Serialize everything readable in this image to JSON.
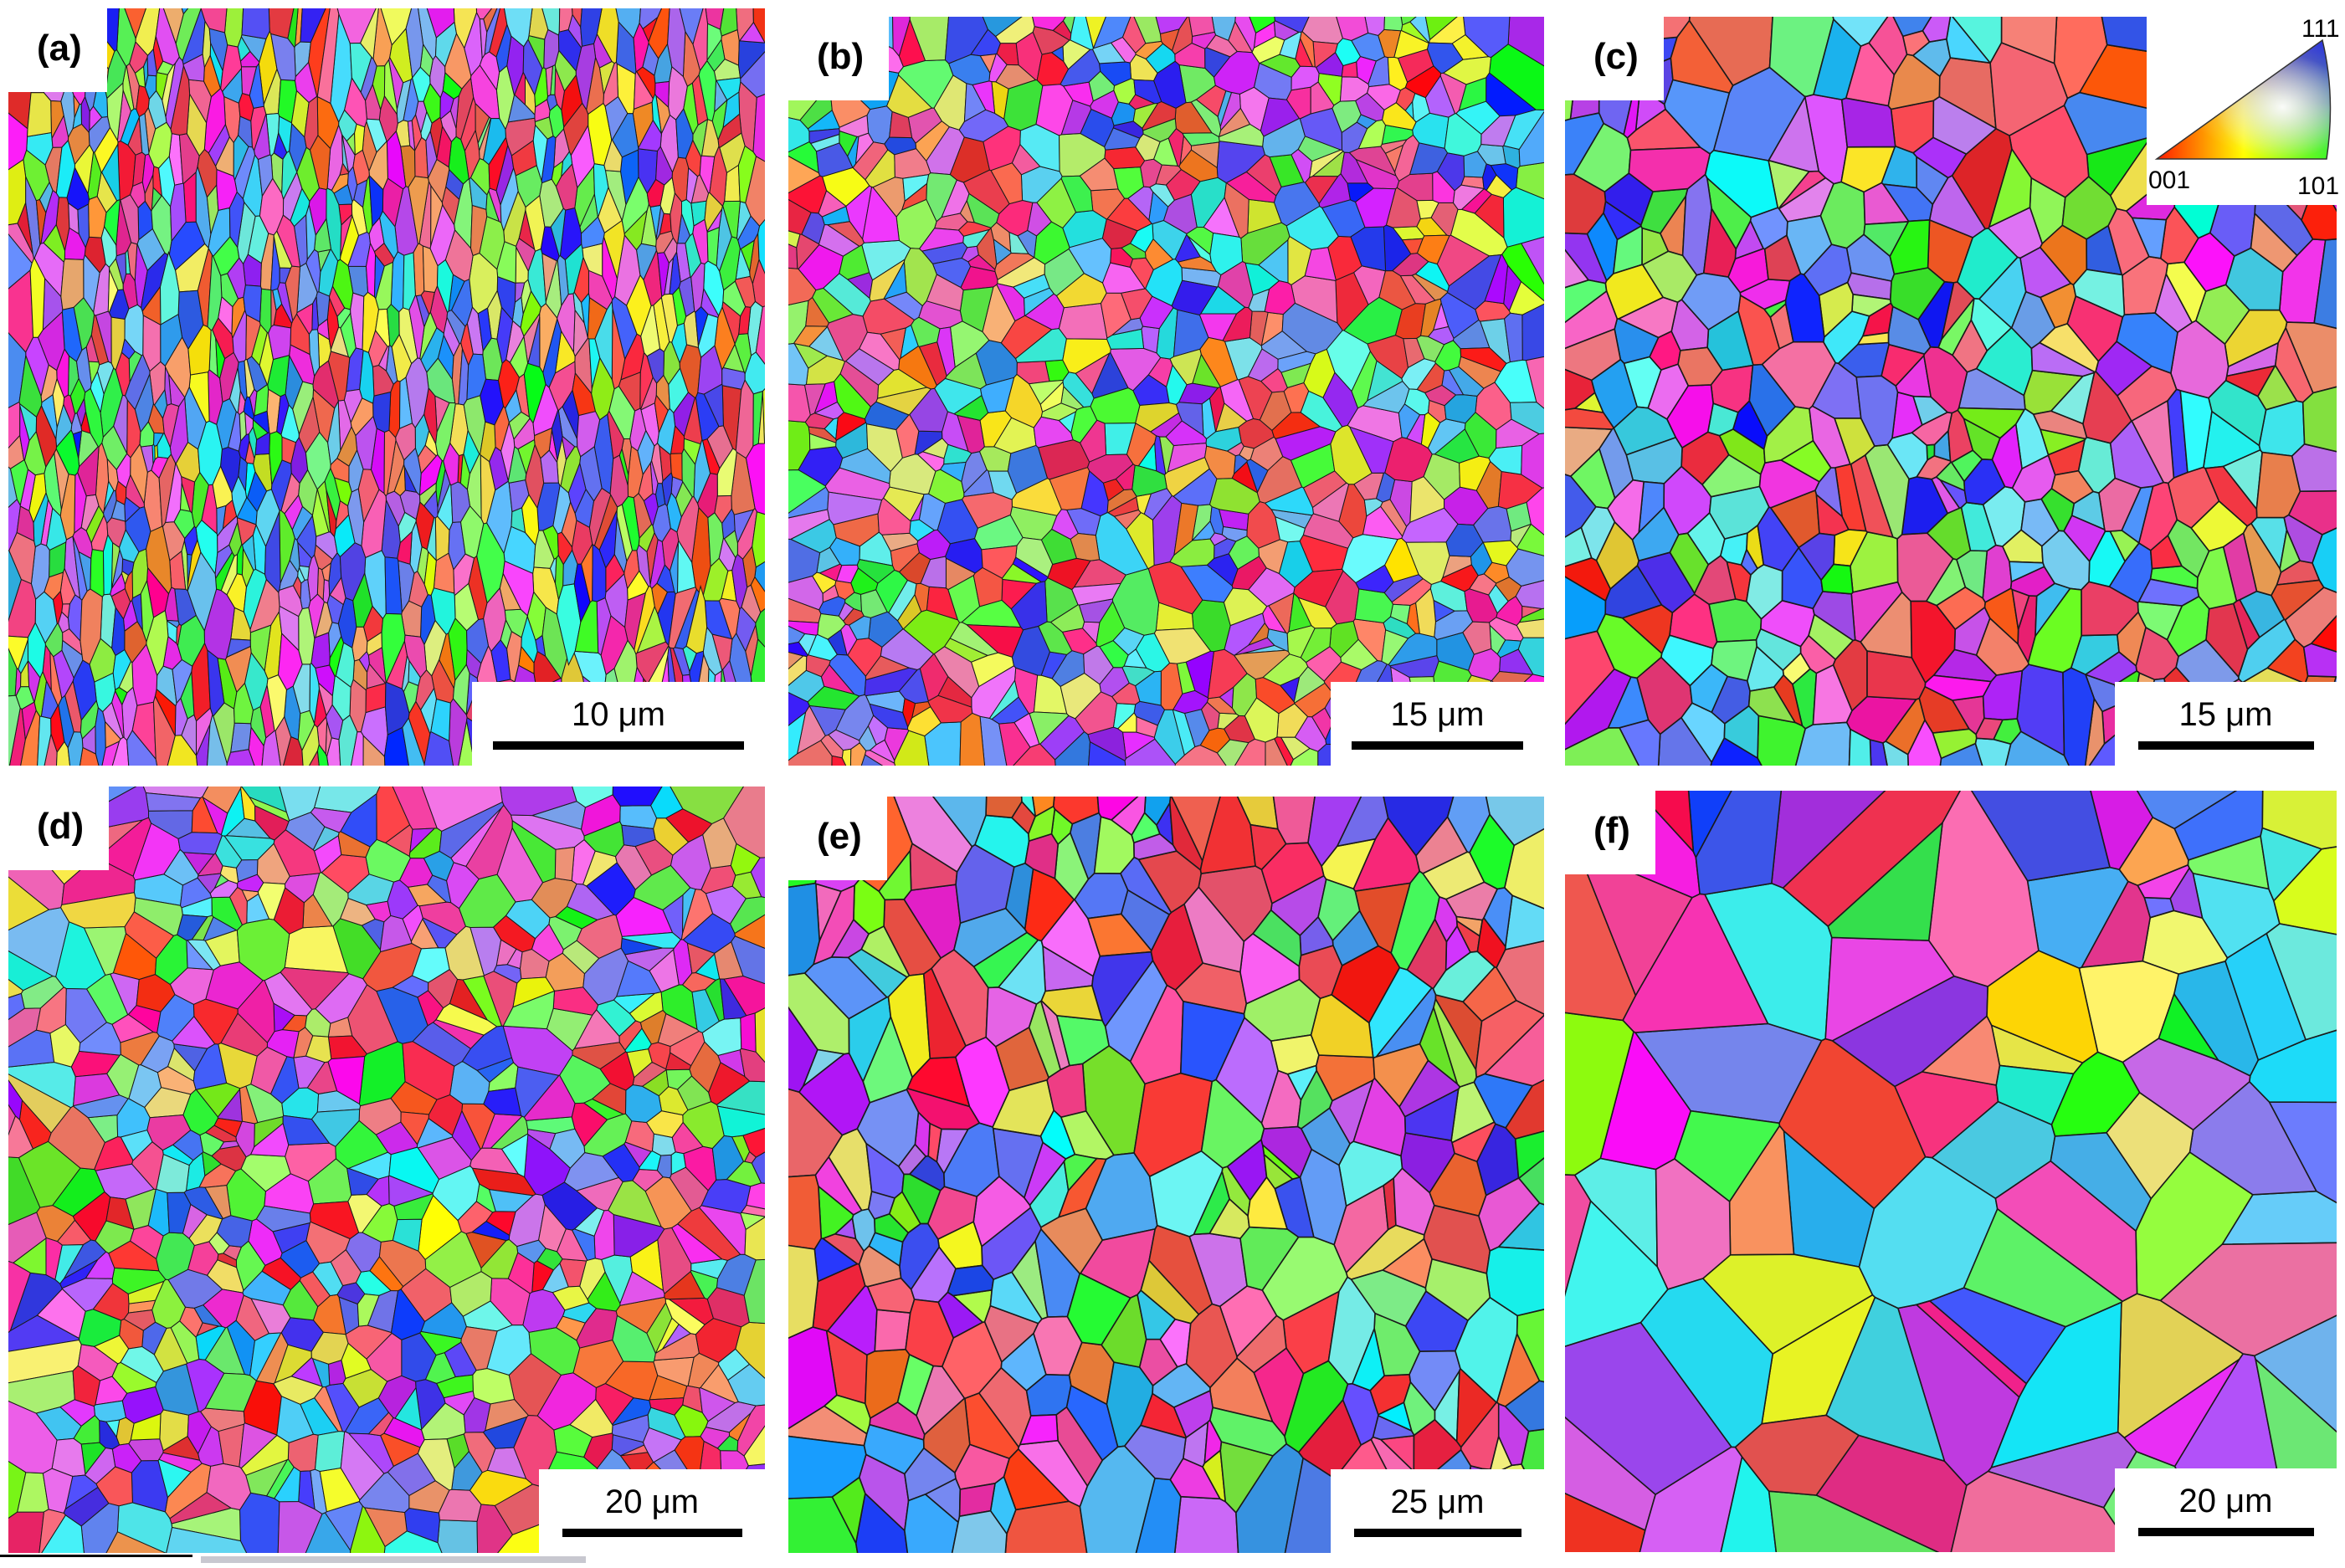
{
  "figure": {
    "panels": [
      {
        "id": "a",
        "label": "(a)",
        "scale_label": "10 μm",
        "seed": 11,
        "grain_count": 1300,
        "stretch": 2.6
      },
      {
        "id": "b",
        "label": "(b)",
        "scale_label": "15 μm",
        "seed": 23,
        "grain_count": 900,
        "stretch": 1.0
      },
      {
        "id": "c",
        "label": "(c)",
        "scale_label": "15 μm",
        "seed": 37,
        "grain_count": 420,
        "stretch": 1.2
      },
      {
        "id": "d",
        "label": "(d)",
        "scale_label": "20 μm",
        "seed": 41,
        "grain_count": 700,
        "stretch": 1.0
      },
      {
        "id": "e",
        "label": "(e)",
        "scale_label": "25 μm",
        "seed": 53,
        "grain_count": 330,
        "stretch": 1.3
      },
      {
        "id": "f",
        "label": "(f)",
        "scale_label": "20 μm",
        "seed": 67,
        "grain_count": 90,
        "stretch": 1.0
      }
    ],
    "ipf_legend": {
      "corner_001": "001",
      "corner_101": "101",
      "corner_111": "111",
      "colors": {
        "001": "#ff0000",
        "101": "#00ff00",
        "111": "#0000ff"
      }
    },
    "grain_boundary_color": "#1a1a1a"
  }
}
